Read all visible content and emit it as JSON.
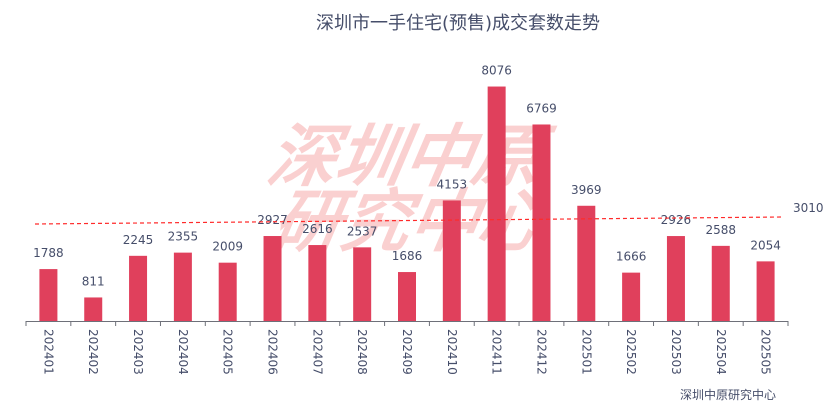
{
  "chart_data": {
    "type": "bar",
    "title": "深圳市一手住宅(预售)成交套数走势",
    "categories": [
      "202401",
      "202402",
      "202403",
      "202404",
      "202405",
      "202406",
      "202407",
      "202408",
      "202409",
      "202410",
      "202411",
      "202412",
      "202501",
      "202502",
      "202503",
      "202504",
      "202505"
    ],
    "values": [
      1788,
      811,
      2245,
      2355,
      2009,
      2927,
      2616,
      2537,
      1686,
      4153,
      8076,
      6769,
      3969,
      1666,
      2926,
      2588,
      2054
    ],
    "average_line": {
      "value": 3010,
      "label": "3010",
      "color": "#ff2a2a"
    },
    "bar_color": "#e0405c",
    "xlabel": "",
    "ylabel": "",
    "ylim": [
      0,
      9300
    ],
    "grid": false,
    "source": "深圳中原研究中心",
    "watermark": [
      "深圳中原",
      "研究中心"
    ]
  }
}
